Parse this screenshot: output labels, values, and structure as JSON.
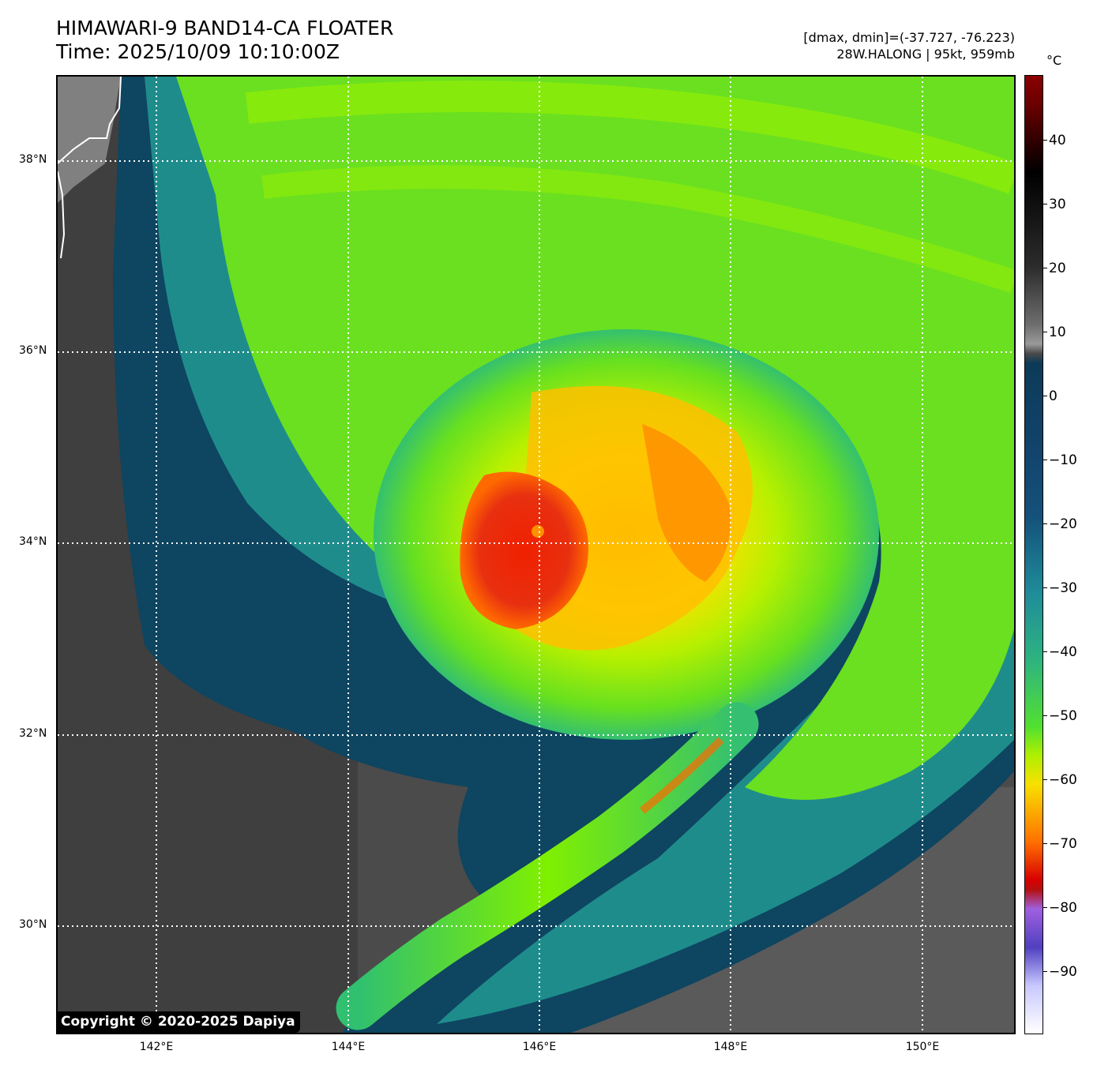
{
  "header": {
    "title": "HIMAWARI-9 BAND14-CA FLOATER",
    "time": "Time: 2025/10/09 10:10:00Z",
    "range": "[dmax, dmin]=(-37.727, -76.223)",
    "storm": "28W.HALONG | 95kt, 959mb"
  },
  "map": {
    "latitude_labels": [
      "38°N",
      "36°N",
      "34°N",
      "32°N",
      "30°N"
    ],
    "longitude_labels": [
      "142°E",
      "144°E",
      "146°E",
      "148°E",
      "150°E"
    ],
    "gridlines": "dotted-white",
    "coastline_color": "#ffffff",
    "features": [
      {
        "name": "typhoon-eye-cold-core",
        "color": "#e02000"
      },
      {
        "name": "convective-band",
        "color": "#ffcc00"
      },
      {
        "name": "cloud-shield",
        "color": "#7cfc00"
      },
      {
        "name": "outer-band",
        "color": "#2ebc8c"
      },
      {
        "name": "clear-ocean",
        "color": "#505050"
      }
    ]
  },
  "colorbar": {
    "unit": "°C",
    "ticks": [
      "40",
      "30",
      "20",
      "10",
      "0",
      "−10",
      "−20",
      "−30",
      "−40",
      "−50",
      "−60",
      "−70",
      "−80",
      "−90"
    ]
  },
  "footer": {
    "copyright": "Copyright © 2020-2025 Dapiya"
  }
}
